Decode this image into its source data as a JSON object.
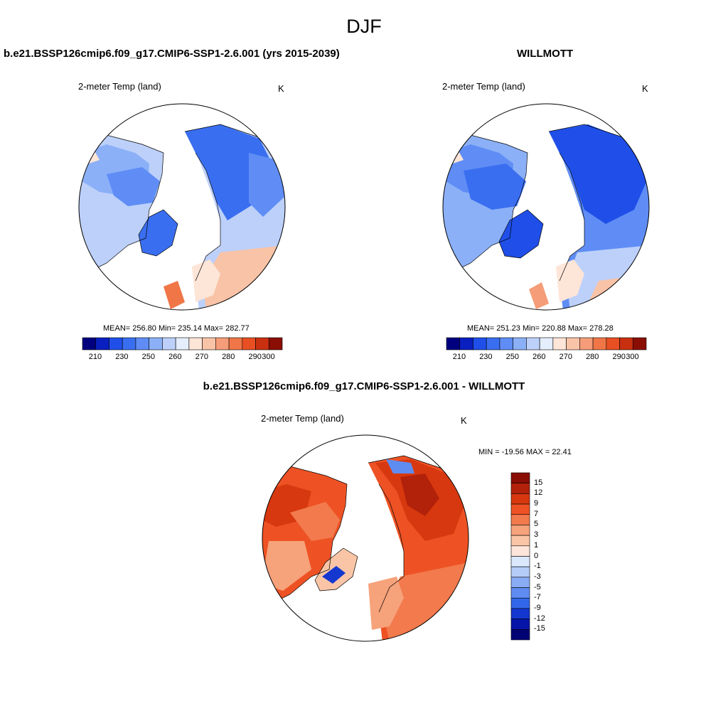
{
  "figure_title": "DJF",
  "panels": [
    {
      "title": "b.e21.BSSP126cmip6.f09_g17.CMIP6-SSP1-2.6.001 (yrs 2015-2039)",
      "left_label": "2-meter Temp (land)",
      "right_label": "K",
      "stats": "MEAN= 256.80  Min= 235.14  Max= 282.77",
      "colorbar_ticks": [
        "210",
        "230",
        "250",
        "260",
        "270",
        "280",
        "290",
        "300"
      ]
    },
    {
      "title": "WILLMOTT",
      "left_label": "2-meter Temp (land)",
      "right_label": "K",
      "stats": "MEAN= 251.23  Min= 220.88  Max= 278.28",
      "colorbar_ticks": [
        "210",
        "230",
        "250",
        "260",
        "270",
        "280",
        "290",
        "300"
      ]
    },
    {
      "title": "b.e21.BSSP126cmip6.f09_g17.CMIP6-SSP1-2.6.001 - WILLMOTT",
      "left_label": "2-meter Temp (land)",
      "right_label": "K",
      "stats": "MIN = -19.56 MAX =  22.41",
      "colorbar_ticks": [
        "15",
        "12",
        "9",
        "7",
        "5",
        "3",
        "1",
        "0",
        "-1",
        "-3",
        "-5",
        "-7",
        "-9",
        "-12",
        "-15"
      ]
    }
  ],
  "colors": {
    "abs_scale": [
      "#00007f",
      "#0a1fbf",
      "#1f4fe8",
      "#3a6ef0",
      "#5f8df5",
      "#8bb0f7",
      "#bcd0fa",
      "#e4eefc",
      "#fde5d7",
      "#f9c3a7",
      "#f59d78",
      "#f07647",
      "#e84f22",
      "#c8300f",
      "#8a0e04"
    ],
    "diff_scale": [
      "#8a0e04",
      "#b2220a",
      "#d8380f",
      "#ee5224",
      "#f27a4c",
      "#f6a27a",
      "#f9c5a6",
      "#fde6d9",
      "#dbe7fb",
      "#b5cbf8",
      "#8aacf5",
      "#5f8cf1",
      "#3367ea",
      "#1437d0",
      "#0515a8",
      "#010274"
    ]
  }
}
